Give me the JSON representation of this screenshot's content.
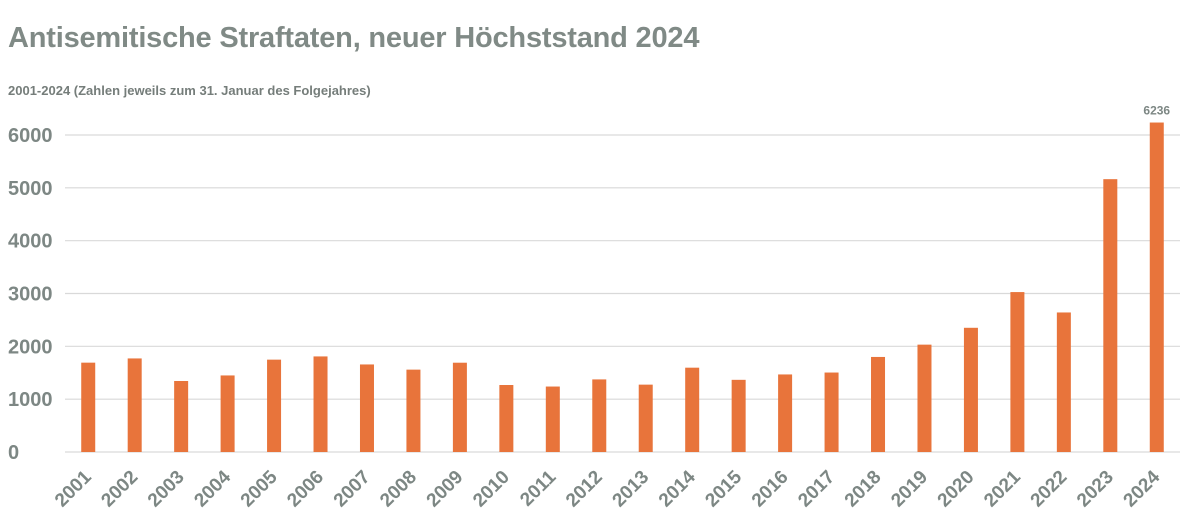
{
  "title": "Antisemitische Straftaten, neuer Höchststand 2024",
  "subtitle": "2001-2024 (Zahlen jeweils zum 31. Januar des Folgejahres)",
  "colors": {
    "bar": "#e8743b",
    "text": "#808a86",
    "grid": "#d9d9d9"
  },
  "chart_data": {
    "type": "bar",
    "categories": [
      "2001",
      "2002",
      "2003",
      "2004",
      "2005",
      "2006",
      "2007",
      "2008",
      "2009",
      "2010",
      "2011",
      "2012",
      "2013",
      "2014",
      "2015",
      "2016",
      "2017",
      "2018",
      "2019",
      "2020",
      "2021",
      "2022",
      "2023",
      "2024"
    ],
    "values": [
      1691,
      1771,
      1344,
      1449,
      1748,
      1809,
      1657,
      1559,
      1690,
      1268,
      1239,
      1374,
      1275,
      1596,
      1366,
      1468,
      1504,
      1799,
      2032,
      2351,
      3027,
      2641,
      5164,
      6236
    ],
    "data_labels": [
      {
        "category": "2024",
        "text": "6236"
      }
    ],
    "xlabel": "",
    "ylabel": "",
    "ylim": [
      0,
      6000
    ],
    "yticks": [
      0,
      1000,
      2000,
      3000,
      4000,
      5000,
      6000
    ],
    "grid": true,
    "legend": "none"
  }
}
